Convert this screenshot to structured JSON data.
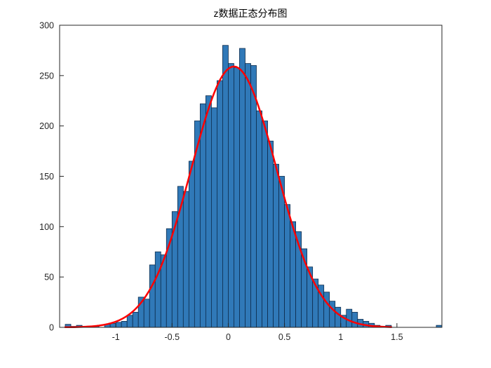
{
  "chart_data": {
    "type": "histogram",
    "title": "z数据正态分布图",
    "xlabel": "",
    "ylabel": "",
    "xlim": [
      -1.5,
      1.9
    ],
    "ylim": [
      0,
      300
    ],
    "xticks": [
      -1,
      -0.5,
      0,
      0.5,
      1,
      1.5
    ],
    "yticks": [
      0,
      50,
      100,
      150,
      200,
      250,
      300
    ],
    "grid": false,
    "legend": "none",
    "bin_start": -1.45,
    "bin_width": 0.05,
    "bar_values": [
      3,
      1,
      2,
      1,
      0,
      1,
      0,
      3,
      4,
      5,
      6,
      12,
      15,
      30,
      28,
      62,
      75,
      72,
      98,
      115,
      140,
      135,
      165,
      205,
      222,
      230,
      218,
      245,
      280,
      262,
      258,
      277,
      262,
      260,
      215,
      205,
      185,
      162,
      150,
      122,
      105,
      95,
      78,
      60,
      48,
      42,
      35,
      26,
      20,
      12,
      18,
      15,
      8,
      6,
      4,
      2,
      1,
      2,
      0,
      0,
      0,
      0,
      0,
      0,
      0,
      0,
      2
    ],
    "bar_face_color": "#3079b8",
    "bar_edge_color": "#0d2c4d",
    "axis_color": "#262626",
    "tick_label_color": "#262626",
    "background_color": "#ffffff",
    "fit_curve": {
      "type": "normal",
      "amplitude": 259,
      "mean": 0.05,
      "sigma": 0.38,
      "x_range": [
        -1.45,
        1.45
      ],
      "color": "#ff0000",
      "line_width": 2.5
    }
  }
}
